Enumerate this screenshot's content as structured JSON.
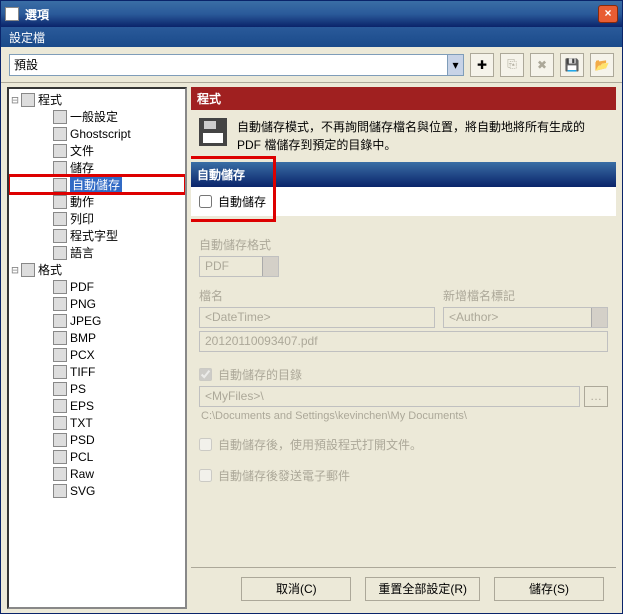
{
  "window": {
    "title": "選項",
    "subtitle": "設定檔"
  },
  "toolbar": {
    "profile_value": "預設"
  },
  "tree": {
    "root1": "程式",
    "items1": [
      {
        "label": "一般設定",
        "icon": "ic-cfg"
      },
      {
        "label": "Ghostscript",
        "icon": "ic-gs"
      },
      {
        "label": "文件",
        "icon": "ic-doc"
      },
      {
        "label": "儲存",
        "icon": "ic-disk"
      },
      {
        "label": "自動儲存",
        "icon": "ic-disk",
        "selected": true,
        "hl": true
      },
      {
        "label": "動作",
        "icon": "ic-arrow"
      },
      {
        "label": "列印",
        "icon": "ic-print"
      },
      {
        "label": "程式字型",
        "icon": "ic-font"
      },
      {
        "label": "語言",
        "icon": "ic-flag"
      }
    ],
    "root2": "格式",
    "items2": [
      {
        "label": "PDF",
        "icon": "ic-pdf"
      },
      {
        "label": "PNG",
        "icon": "ic-png"
      },
      {
        "label": "JPEG",
        "icon": "ic-jpg"
      },
      {
        "label": "BMP",
        "icon": "ic-bmp"
      },
      {
        "label": "PCX",
        "icon": "ic-pcx"
      },
      {
        "label": "TIFF",
        "icon": "ic-tif"
      },
      {
        "label": "PS",
        "icon": "ic-ps"
      },
      {
        "label": "EPS",
        "icon": "ic-eps"
      },
      {
        "label": "TXT",
        "icon": "ic-txt"
      },
      {
        "label": "PSD",
        "icon": "ic-psd"
      },
      {
        "label": "PCL",
        "icon": "ic-pcl"
      },
      {
        "label": "Raw",
        "icon": "ic-raw"
      },
      {
        "label": "SVG",
        "icon": "ic-svg"
      }
    ]
  },
  "panel": {
    "section_title": "程式",
    "info_text": "自動儲存模式，不再詢問儲存檔名與位置，將自動地將所有生成的 PDF 檔儲存到預定的目錄中。",
    "autosave_header": "自動儲存",
    "autosave_checkbox": "自動儲存",
    "format_label": "自動儲存格式",
    "format_value": "PDF",
    "filename_label": "檔名",
    "filename_value": "<DateTime>",
    "tokenadd_label": "新增檔名標記",
    "tokenadd_value": "<Author>",
    "preview": "20120110093407.pdf",
    "dir_checkbox": "自動儲存的目錄",
    "dir_value": "<MyFiles>\\",
    "dir_resolved": "C:\\Documents and Settings\\kevinchen\\My Documents\\",
    "open_after": "自動儲存後，使用預設程式打開文件。",
    "email_after": "自動儲存後發送電子郵件"
  },
  "buttons": {
    "cancel": "取消(C)",
    "reset": "重置全部設定(R)",
    "save": "儲存(S)"
  }
}
